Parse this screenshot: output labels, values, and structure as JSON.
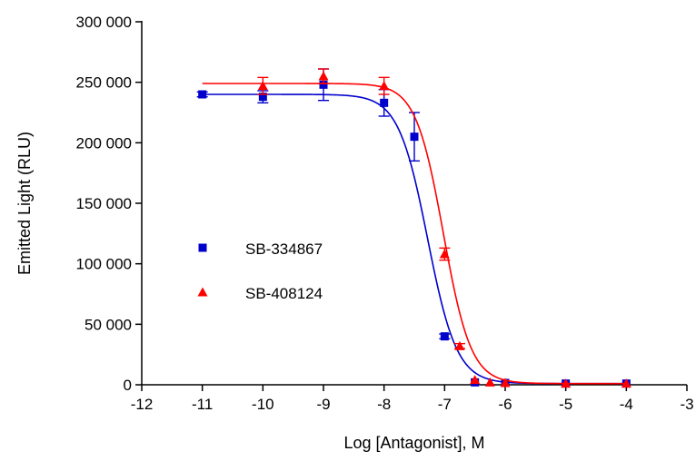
{
  "chart_data": {
    "type": "scatter",
    "title": "",
    "xlabel": "Log [Antagonist], M",
    "ylabel": "Emitted Light (RLU)",
    "xlim": [
      -12,
      -3
    ],
    "ylim": [
      0,
      300000
    ],
    "x_ticks": [
      -12,
      -11,
      -10,
      -9,
      -8,
      -7,
      -6,
      -5,
      -4,
      -3
    ],
    "x_tick_labels": [
      "-12",
      "-11",
      "-10",
      "-9",
      "-8",
      "-7",
      "-6",
      "-5",
      "-4",
      "-3"
    ],
    "y_ticks": [
      0,
      50000,
      100000,
      150000,
      200000,
      250000,
      300000
    ],
    "y_tick_labels": [
      "0",
      "50 000",
      "100 000",
      "150 000",
      "200 000",
      "250 000",
      "300 000"
    ],
    "grid": false,
    "legend_position": "center-left",
    "series": [
      {
        "name": "SB-334867",
        "color": "#0000cc",
        "marker": "square",
        "points": [
          {
            "x": -11,
            "y": 240000,
            "err": 2000
          },
          {
            "x": -10,
            "y": 238000,
            "err": 5000
          },
          {
            "x": -9,
            "y": 248000,
            "err": 13000
          },
          {
            "x": -8,
            "y": 233000,
            "err": 11000
          },
          {
            "x": -7.5,
            "y": 205000,
            "err": 20000
          },
          {
            "x": -7,
            "y": 40000,
            "err": 2000
          },
          {
            "x": -6.5,
            "y": 2000,
            "err": 500
          },
          {
            "x": -6,
            "y": 1500,
            "err": 300
          },
          {
            "x": -5,
            "y": 1000,
            "err": 300
          },
          {
            "x": -4,
            "y": 1000,
            "err": 300
          }
        ],
        "fit": {
          "top": 240000,
          "bottom": 1000,
          "logIC50": -7.28,
          "hill": -1.8
        }
      },
      {
        "name": "SB-408124",
        "color": "#ff0000",
        "marker": "triangle",
        "points": [
          {
            "x": -10,
            "y": 247000,
            "err": 7000
          },
          {
            "x": -9,
            "y": 255000,
            "err": 6000
          },
          {
            "x": -8,
            "y": 247000,
            "err": 7000
          },
          {
            "x": -7,
            "y": 108000,
            "err": 5000
          },
          {
            "x": -6.75,
            "y": 32000,
            "err": 2000
          },
          {
            "x": -6.5,
            "y": 4000,
            "err": 500
          },
          {
            "x": -6.25,
            "y": 2000,
            "err": 500
          },
          {
            "x": -6,
            "y": 1500,
            "err": 300
          },
          {
            "x": -5,
            "y": 1000,
            "err": 300
          },
          {
            "x": -4,
            "y": 1000,
            "err": 300
          }
        ],
        "fit": {
          "top": 249000,
          "bottom": 1000,
          "logIC50": -7.02,
          "hill": -1.9
        }
      }
    ]
  }
}
